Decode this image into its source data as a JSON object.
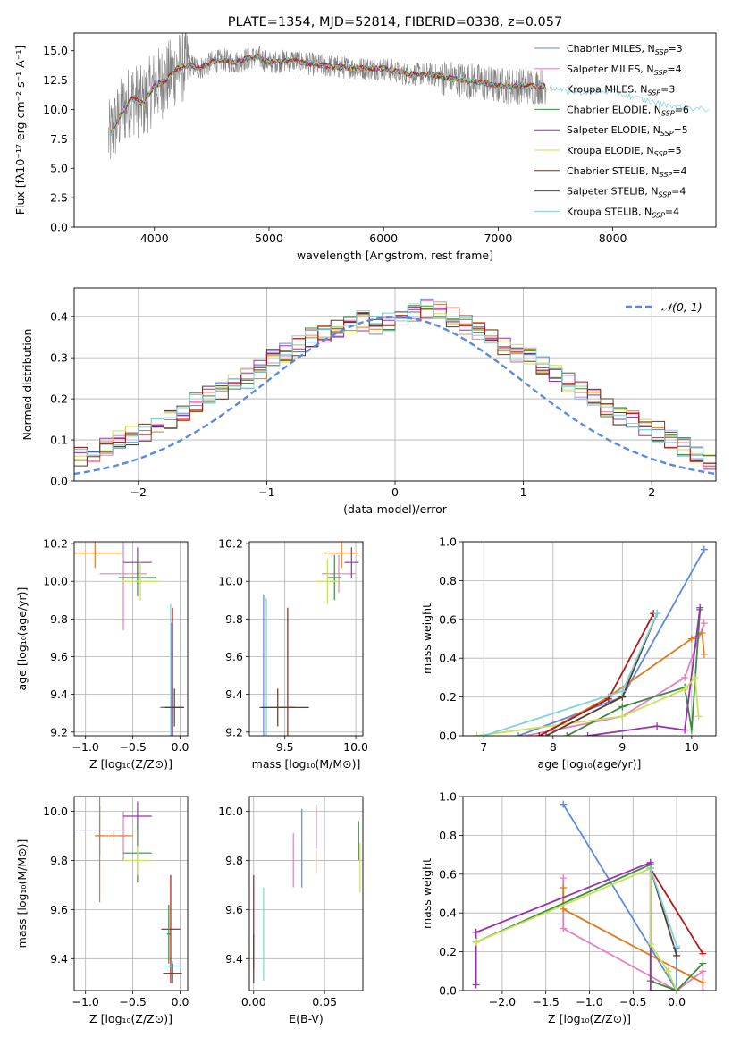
{
  "colors": {
    "series": [
      "#5a8be0",
      "#e87fc0",
      "#e07a1f",
      "#3f8a3f",
      "#9b2fb0",
      "#c8e05a",
      "#5a3a2a",
      "#b01818",
      "#7fd3d8"
    ],
    "normal": "#5a8be0",
    "observed": "#808080",
    "grid": "#b0b0b0"
  },
  "chart_data": [
    {
      "id": "spectrum",
      "type": "line",
      "title": "PLATE=1354, MJD=52814, FIBERID=0338, z=0.057",
      "xlabel": "wavelength [Angstrom, rest frame]",
      "ylabel": "Flux [fλ10⁻¹⁷ erg cm⁻² s⁻¹ A⁻¹]",
      "xlim": [
        3300,
        8900
      ],
      "ylim": [
        0,
        16.5
      ],
      "xticks": [
        "4000",
        "5000",
        "6000",
        "7000",
        "8000"
      ],
      "yticks": [
        "0.0",
        "2.5",
        "5.0",
        "7.5",
        "10.0",
        "12.5",
        "15.0"
      ],
      "legend_position": "top-right",
      "grid": false,
      "continuum": {
        "x": [
          3600,
          3700,
          3800,
          3900,
          4000,
          4100,
          4200,
          4300,
          4400,
          4500,
          4600,
          4700,
          4800,
          4900,
          5000,
          5200,
          5400,
          5600,
          5800,
          6000,
          6200,
          6400,
          6600,
          6800,
          7000,
          7200,
          7400,
          7600,
          7800,
          8000,
          8200,
          8400,
          8600,
          8800
        ],
        "y": [
          7.5,
          9.5,
          11.0,
          10.5,
          12.0,
          12.5,
          13.5,
          13.8,
          13.5,
          14.0,
          14.2,
          14.0,
          14.3,
          14.5,
          14.0,
          14.2,
          13.8,
          13.6,
          13.5,
          13.5,
          13.0,
          13.0,
          12.6,
          12.4,
          12.0,
          12.0,
          12.0,
          11.5,
          11.5,
          11.5,
          11.0,
          10.5,
          10.2,
          10.0
        ]
      },
      "series": [
        {
          "name": "Chabrier MILES, N_SSP=3",
          "label_prefix": "Chabrier MILES, N",
          "label_sub": "SSP",
          "label_suffix": "=3"
        },
        {
          "name": "Salpeter MILES, N_SSP=4",
          "label_prefix": "Salpeter MILES, N",
          "label_sub": "SSP",
          "label_suffix": "=4"
        },
        {
          "name": "Kroupa MILES, N_SSP=3",
          "label_prefix": "Kroupa MILES, N",
          "label_sub": "SSP",
          "label_suffix": "=3"
        },
        {
          "name": "Chabrier ELODIE, N_SSP=6",
          "label_prefix": "Chabrier ELODIE, N",
          "label_sub": "SSP",
          "label_suffix": "=6"
        },
        {
          "name": "Salpeter ELODIE, N_SSP=5",
          "label_prefix": "Salpeter ELODIE, N",
          "label_sub": "SSP",
          "label_suffix": "=5"
        },
        {
          "name": "Kroupa ELODIE, N_SSP=5",
          "label_prefix": "Kroupa ELODIE, N",
          "label_sub": "SSP",
          "label_suffix": "=5"
        },
        {
          "name": "Chabrier STELIB, N_SSP=4",
          "label_prefix": "Chabrier STELIB, N",
          "label_sub": "SSP",
          "label_suffix": "=4"
        },
        {
          "name": "Salpeter STELIB, N_SSP=4",
          "label_prefix": "Salpeter STELIB, N",
          "label_sub": "SSP",
          "label_suffix": "=4"
        },
        {
          "name": "Kroupa STELIB, N_SSP=4",
          "label_prefix": "Kroupa STELIB, N",
          "label_sub": "SSP",
          "label_suffix": "=4"
        }
      ]
    },
    {
      "id": "residuals",
      "type": "line",
      "xlabel": "(data-model)/error",
      "ylabel": "Normed distribution",
      "xlim": [
        -2.5,
        2.5
      ],
      "ylim": [
        0,
        0.47
      ],
      "xticks": [
        "−2",
        "−1",
        "0",
        "1",
        "2"
      ],
      "yticks": [
        "0.0",
        "0.1",
        "0.2",
        "0.3",
        "0.4"
      ],
      "grid": true,
      "legend": {
        "label": "𝒩(0, 1)",
        "position": "top-right"
      },
      "bin_width": 0.1,
      "base_hist": [
        0.02,
        0.025,
        0.04,
        0.045,
        0.05,
        0.055,
        0.06,
        0.07,
        0.08,
        0.1,
        0.11,
        0.12,
        0.14,
        0.15,
        0.17,
        0.19,
        0.21,
        0.22,
        0.24,
        0.25,
        0.27,
        0.3,
        0.31,
        0.33,
        0.35,
        0.36,
        0.37,
        0.38,
        0.39,
        0.38,
        0.39,
        0.4,
        0.41,
        0.42,
        0.42,
        0.4,
        0.38,
        0.37,
        0.35,
        0.33,
        0.31,
        0.3,
        0.28,
        0.26,
        0.24,
        0.22,
        0.2,
        0.18,
        0.16,
        0.15,
        0.13,
        0.12,
        0.1,
        0.08,
        0.07,
        0.05,
        0.045,
        0.04,
        0.035,
        0.03,
        0.025,
        0.02
      ]
    },
    {
      "id": "age-vs-Z",
      "type": "scatter",
      "xlabel": "Z [log₁₀(Z/Z⊙)]",
      "ylabel": "age  [log₁₀(age/yr)]",
      "xlim": [
        -1.12,
        0.08
      ],
      "ylim": [
        9.18,
        10.21
      ],
      "xticks": [
        "−1.0",
        "−0.5",
        "0.0"
      ],
      "yticks": [
        "9.2",
        "9.4",
        "9.6",
        "9.8",
        "10.0",
        "10.2"
      ],
      "grid": true,
      "points": [
        {
          "x": -0.9,
          "y": 10.15,
          "xerr": 0.28,
          "yerr": 0.08,
          "s": 2
        },
        {
          "x": -0.6,
          "y": 10.04,
          "xerr": 0.25,
          "yerr": 0.3,
          "s": 1
        },
        {
          "x": -0.45,
          "y": 10.1,
          "xerr": 0.15,
          "yerr": 0.08,
          "s": 4
        },
        {
          "x": -0.45,
          "y": 10.02,
          "xerr": 0.2,
          "yerr": 0.1,
          "s": 3
        },
        {
          "x": -0.42,
          "y": 10.0,
          "xerr": 0.2,
          "yerr": 0.1,
          "s": 5
        },
        {
          "x": -0.1,
          "y": 9.33,
          "xerr": 0.12,
          "yerr": 0.55,
          "s": 8
        },
        {
          "x": -0.08,
          "y": 9.33,
          "xerr": 0.12,
          "yerr": 0.53,
          "s": 7
        },
        {
          "x": -0.09,
          "y": 9.33,
          "xerr": 0.1,
          "yerr": 0.45,
          "s": 0
        },
        {
          "x": -0.06,
          "y": 9.33,
          "xerr": 0.1,
          "yerr": 0.1,
          "s": 6
        }
      ]
    },
    {
      "id": "age-vs-mass",
      "type": "scatter",
      "xlabel": "mass [log₁₀(M/M⊙)]",
      "xlim": [
        9.25,
        10.05
      ],
      "ylim": [
        9.18,
        10.21
      ],
      "xticks": [
        "9.5",
        "10.0"
      ],
      "yticks": [
        "9.2",
        "9.4",
        "9.6",
        "9.8",
        "10.0",
        "10.2"
      ],
      "grid": true,
      "points": [
        {
          "x": 9.9,
          "y": 10.15,
          "xerr": 0.12,
          "yerr": 0.08,
          "s": 2
        },
        {
          "x": 9.88,
          "y": 10.04,
          "xerr": 0.12,
          "yerr": 0.1,
          "s": 1
        },
        {
          "x": 9.97,
          "y": 10.1,
          "xerr": 0.05,
          "yerr": 0.08,
          "s": 4
        },
        {
          "x": 9.85,
          "y": 10.02,
          "xerr": 0.05,
          "yerr": 0.12,
          "s": 3
        },
        {
          "x": 9.8,
          "y": 10.0,
          "xerr": 0.08,
          "yerr": 0.12,
          "s": 5
        },
        {
          "x": 9.52,
          "y": 9.33,
          "xerr": 0.15,
          "yerr": 0.53,
          "s": 7
        },
        {
          "x": 9.35,
          "y": 9.33,
          "xerr": 0.03,
          "yerr": 0.6,
          "s": 0
        },
        {
          "x": 9.37,
          "y": 9.33,
          "xerr": 0.02,
          "yerr": 0.58,
          "s": 8
        },
        {
          "x": 9.45,
          "y": 9.33,
          "xerr": 0.12,
          "yerr": 0.1,
          "s": 6
        }
      ]
    },
    {
      "id": "weight-vs-age",
      "type": "line",
      "xlabel": "age  [log₁₀(age/yr)]",
      "ylabel": "mass weight",
      "xlim": [
        6.7,
        10.35
      ],
      "ylim": [
        0,
        1.0
      ],
      "xticks": [
        "7",
        "8",
        "9",
        "10"
      ],
      "yticks": [
        "0.0",
        "0.2",
        "0.4",
        "0.6",
        "0.8",
        "1.0"
      ],
      "grid": true,
      "series": [
        {
          "s": 0,
          "x": [
            7.5,
            9.0,
            10.18
          ],
          "y": [
            0.0,
            0.2,
            0.96
          ]
        },
        {
          "s": 1,
          "x": [
            7.6,
            9.0,
            9.9,
            10.18
          ],
          "y": [
            0.0,
            0.1,
            0.3,
            0.58
          ]
        },
        {
          "s": 2,
          "x": [
            7.8,
            8.8,
            10.0,
            10.15,
            10.18
          ],
          "y": [
            0.0,
            0.2,
            0.5,
            0.53,
            0.42
          ]
        },
        {
          "s": 3,
          "x": [
            8.2,
            9.0,
            9.9,
            10.0,
            10.12
          ],
          "y": [
            0.0,
            0.15,
            0.25,
            0.03,
            0.65
          ]
        },
        {
          "s": 4,
          "x": [
            8.5,
            9.5,
            9.9,
            10.12
          ],
          "y": [
            0.0,
            0.05,
            0.03,
            0.66
          ]
        },
        {
          "s": 5,
          "x": [
            6.9,
            9.0,
            9.9,
            10.05,
            10.1
          ],
          "y": [
            0.0,
            0.1,
            0.24,
            0.3,
            0.1
          ]
        },
        {
          "s": 6,
          "x": [
            7.9,
            9.0,
            9.5
          ],
          "y": [
            0.0,
            0.2,
            0.63
          ]
        },
        {
          "s": 7,
          "x": [
            7.8,
            8.8,
            9.45
          ],
          "y": [
            0.0,
            0.19,
            0.63
          ]
        },
        {
          "s": 8,
          "x": [
            7.0,
            9.0,
            9.5
          ],
          "y": [
            0.0,
            0.23,
            0.63
          ]
        }
      ]
    },
    {
      "id": "mass-vs-Z",
      "type": "scatter",
      "xlabel": "Z [log₁₀(Z/Z⊙)]",
      "ylabel": "mass [log₁₀(M/M⊙)]",
      "xlim": [
        -1.12,
        0.08
      ],
      "ylim": [
        9.27,
        10.06
      ],
      "xticks": [
        "−1.0",
        "−0.5",
        "0.0"
      ],
      "yticks": [
        "9.4",
        "9.6",
        "9.8",
        "10.0"
      ],
      "grid": true,
      "points": [
        {
          "x": -0.85,
          "y": 9.92,
          "xerr": 0.25,
          "yerr": 0.1,
          "s": 0
        },
        {
          "x": -0.85,
          "y": 9.9,
          "xerr": 0.05,
          "yerr": 0.27,
          "s": 2
        },
        {
          "x": -0.6,
          "y": 9.9,
          "xerr": 0.05,
          "yerr": 0.1,
          "s": 1
        },
        {
          "x": -0.7,
          "y": 9.9,
          "xerr": 0.2,
          "yerr": 0.02,
          "s": 2
        },
        {
          "x": -0.45,
          "y": 9.98,
          "xerr": 0.15,
          "yerr": 0.06,
          "s": 4
        },
        {
          "x": -0.45,
          "y": 9.83,
          "xerr": 0.15,
          "yerr": 0.12,
          "s": 3
        },
        {
          "x": -0.45,
          "y": 9.8,
          "xerr": 0.15,
          "yerr": 0.06,
          "s": 5
        },
        {
          "x": -0.1,
          "y": 9.52,
          "xerr": 0.1,
          "yerr": 0.22,
          "s": 7
        },
        {
          "x": -0.08,
          "y": 9.37,
          "xerr": 0.1,
          "yerr": 0.02,
          "s": 8
        },
        {
          "x": -0.08,
          "y": 9.34,
          "xerr": 0.1,
          "yerr": 0.04,
          "s": 6
        },
        {
          "x": -0.12,
          "y": 9.5,
          "xerr": 0.02,
          "yerr": 0.12,
          "s": 3
        }
      ]
    },
    {
      "id": "mass-vs-EBV",
      "type": "scatter",
      "xlabel": "E(B-V)",
      "xlim": [
        -0.003,
        0.077
      ],
      "ylim": [
        9.27,
        10.06
      ],
      "xticks": [
        "0.00",
        "0.05"
      ],
      "yticks": [
        "9.4",
        "9.6",
        "9.8",
        "10.0"
      ],
      "grid": true,
      "points": [
        {
          "x": 0.0,
          "y": 9.55,
          "yerr": 0.19,
          "s": 7
        },
        {
          "x": 0.0,
          "y": 9.4,
          "yerr": 0.1,
          "s": 6
        },
        {
          "x": 0.007,
          "y": 9.5,
          "yerr": 0.19,
          "s": 8
        },
        {
          "x": 0.028,
          "y": 9.8,
          "yerr": 0.11,
          "s": 1
        },
        {
          "x": 0.034,
          "y": 9.85,
          "yerr": 0.16,
          "s": 0
        },
        {
          "x": 0.044,
          "y": 9.88,
          "yerr": 0.13,
          "s": 2
        },
        {
          "x": 0.044,
          "y": 9.94,
          "yerr": 0.09,
          "s": 4
        },
        {
          "x": 0.074,
          "y": 9.88,
          "yerr": 0.08,
          "s": 3
        },
        {
          "x": 0.075,
          "y": 9.77,
          "yerr": 0.1,
          "s": 5
        }
      ]
    },
    {
      "id": "weight-vs-Z",
      "type": "line",
      "xlabel": "Z [log₁₀(Z/Z⊙)]",
      "ylabel": "mass weight",
      "xlim": [
        -2.45,
        0.45
      ],
      "ylim": [
        0,
        1.0
      ],
      "xticks": [
        "−2.0",
        "−1.5",
        "−1.0",
        "−0.5",
        "0.0"
      ],
      "yticks": [
        "0.0",
        "0.2",
        "0.4",
        "0.6",
        "0.8",
        "1.0"
      ],
      "grid": true,
      "series": [
        {
          "s": 0,
          "x": [
            -1.3,
            0.0,
            0.0
          ],
          "y": [
            0.96,
            0.0,
            0.22
          ]
        },
        {
          "s": 1,
          "x": [
            -1.3,
            -1.3,
            0.0,
            0.3,
            0.3
          ],
          "y": [
            0.58,
            0.32,
            0.0,
            0.1,
            0.0
          ]
        },
        {
          "s": 2,
          "x": [
            -1.3,
            -1.3,
            0.3
          ],
          "y": [
            0.53,
            0.42,
            0.04
          ]
        },
        {
          "s": 3,
          "x": [
            -2.3,
            -0.3,
            -0.3,
            0.0,
            0.3
          ],
          "y": [
            0.25,
            0.65,
            0.05,
            0.0,
            0.14
          ]
        },
        {
          "s": 4,
          "x": [
            -2.3,
            -2.3,
            -0.3,
            -0.3,
            0.0
          ],
          "y": [
            0.03,
            0.3,
            0.66,
            0.0,
            0.0
          ]
        },
        {
          "s": 5,
          "x": [
            -2.3,
            -0.3,
            -0.3,
            -0.1,
            0.0
          ],
          "y": [
            0.25,
            0.63,
            0.24,
            0.1,
            0.0
          ]
        },
        {
          "s": 6,
          "x": [
            -0.3,
            0.0
          ],
          "y": [
            0.63,
            0.18
          ]
        },
        {
          "s": 7,
          "x": [
            -0.3,
            0.3
          ],
          "y": [
            0.63,
            0.19
          ]
        },
        {
          "s": 8,
          "x": [
            -0.3,
            0.0
          ],
          "y": [
            0.63,
            0.23
          ]
        }
      ]
    }
  ]
}
